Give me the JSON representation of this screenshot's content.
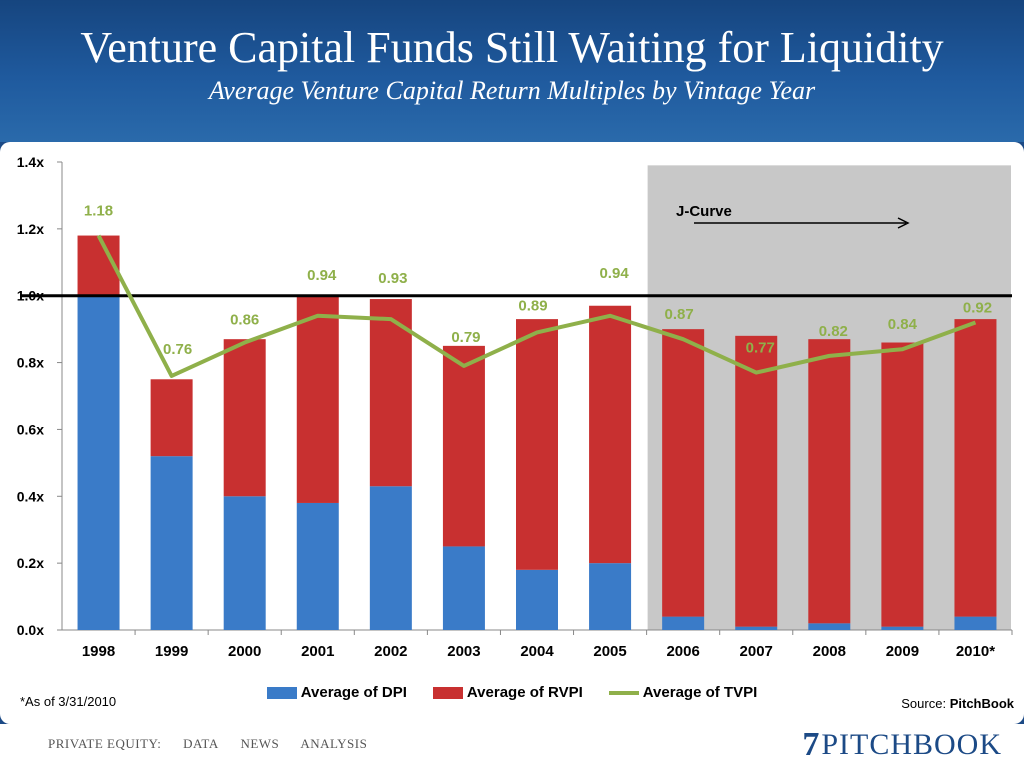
{
  "title": "Venture Capital Funds Still Waiting for Liquidity",
  "subtitle": "Average Venture Capital Return Multiples by Vintage Year",
  "note": "*As of 3/31/2010",
  "source_label": "Source:",
  "source_name": "PitchBook",
  "footer_nav": [
    "PRIVATE EQUITY:",
    "DATA",
    "NEWS",
    "ANALYSIS"
  ],
  "logo_text": "PITCHBOOK",
  "logo_mark": "7",
  "colors": {
    "dpi": "#3a7bc8",
    "rvpi": "#c83030",
    "tvpi": "#8fb04a",
    "shade": "#c8c8c8"
  },
  "chart_data": {
    "type": "bar",
    "stacked": true,
    "categories": [
      "1998",
      "1999",
      "2000",
      "2001",
      "2002",
      "2003",
      "2004",
      "2005",
      "2006",
      "2007",
      "2008",
      "2009",
      "2010*"
    ],
    "series": [
      {
        "name": "Average of DPI",
        "type": "bar",
        "values": [
          1.0,
          0.52,
          0.4,
          0.38,
          0.43,
          0.25,
          0.18,
          0.2,
          0.04,
          0.01,
          0.02,
          0.01,
          0.04
        ]
      },
      {
        "name": "Average of RVPI",
        "type": "bar",
        "values": [
          0.18,
          0.23,
          0.47,
          0.62,
          0.56,
          0.6,
          0.75,
          0.77,
          0.86,
          0.87,
          0.85,
          0.85,
          0.89
        ]
      },
      {
        "name": "Average of TVPI",
        "type": "line",
        "values": [
          1.18,
          0.76,
          0.86,
          0.94,
          0.93,
          0.79,
          0.89,
          0.94,
          0.87,
          0.77,
          0.82,
          0.84,
          0.92
        ],
        "labels": [
          "1.18",
          "0.76",
          "0.86",
          "0.94",
          "0.93",
          "0.79",
          "0.89",
          "0.94",
          "0.87",
          "0.77",
          "0.82",
          "0.84",
          "0.92"
        ]
      }
    ],
    "y_ticks": [
      "0.0x",
      "0.2x",
      "0.4x",
      "0.6x",
      "0.8x",
      "1.0x",
      "1.2x",
      "1.4x"
    ],
    "ylim": [
      0,
      1.4
    ],
    "reference_line": 1.0,
    "shaded_region": [
      "2006",
      "2010*"
    ],
    "annotation": "J-Curve",
    "legend_position": "bottom"
  }
}
